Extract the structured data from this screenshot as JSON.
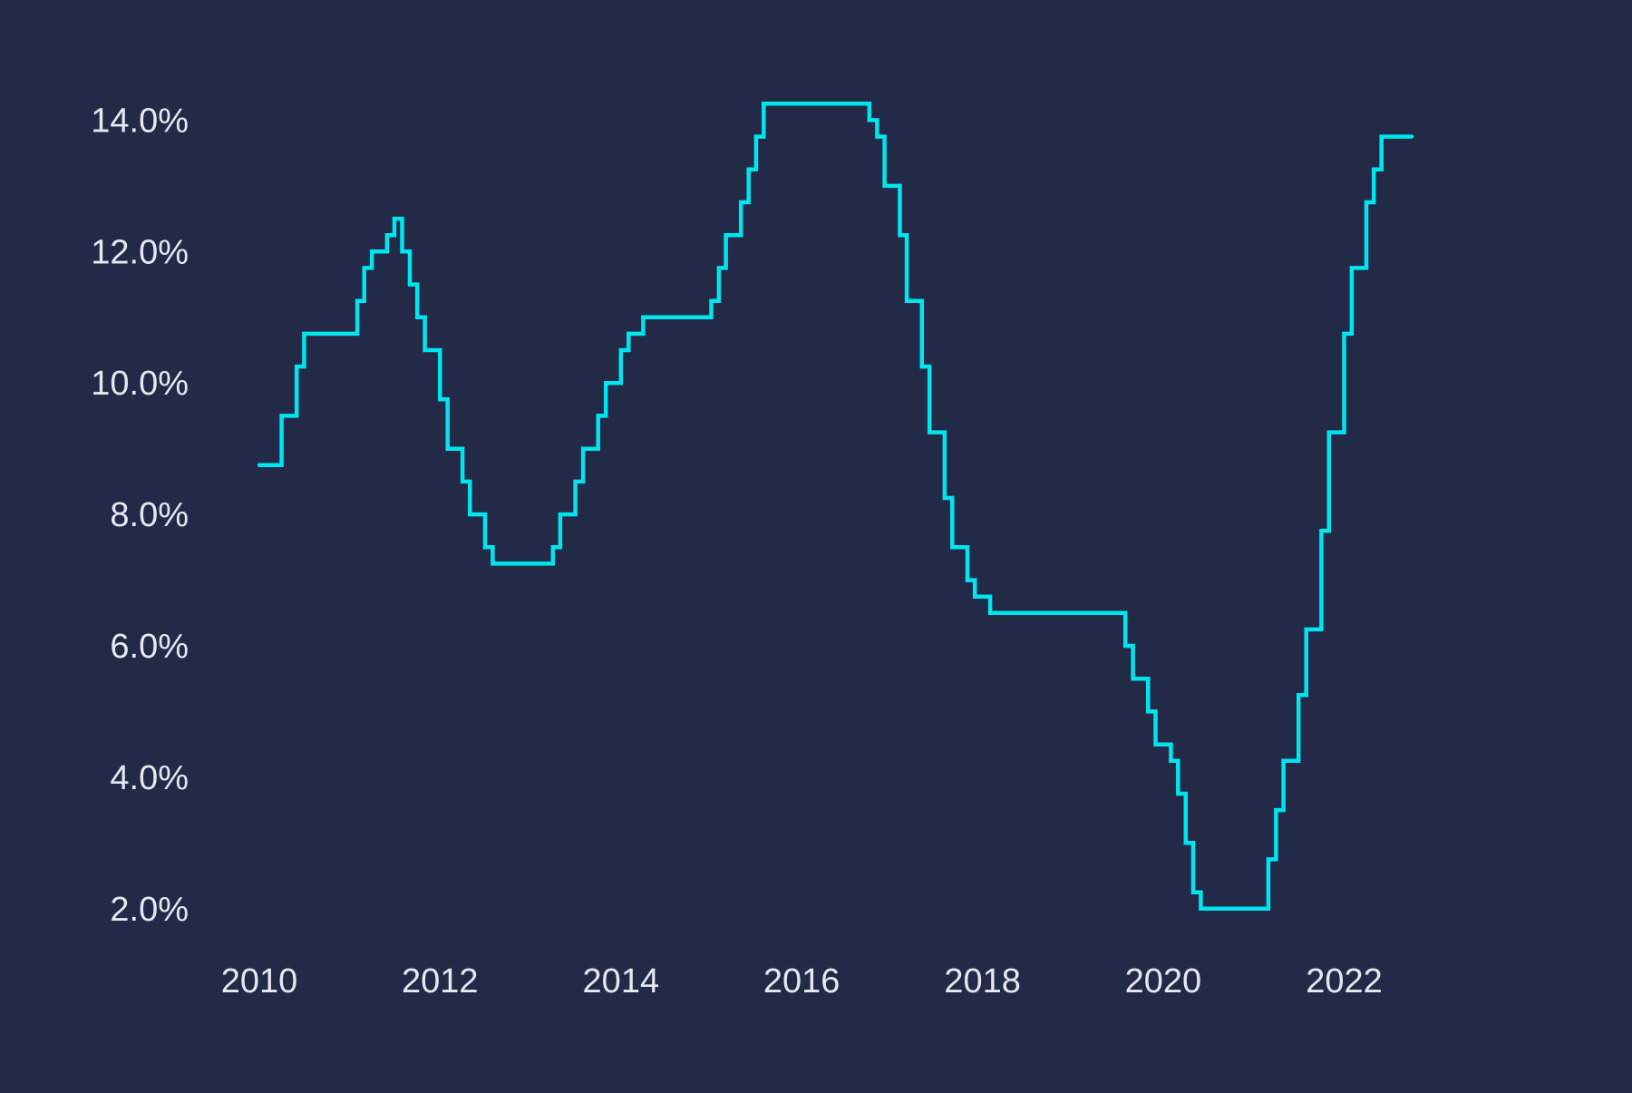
{
  "colors": {
    "background": "#222a48",
    "line": "#00e5ee",
    "text": "#e6e8f0"
  },
  "chart_data": {
    "type": "line",
    "step": "post",
    "title": "",
    "xlabel": "",
    "ylabel": "",
    "xlim": [
      "2010-01-01",
      "2022-10-01"
    ],
    "ylim": [
      1.5,
      15.0
    ],
    "grid": false,
    "legend": "none",
    "x_ticks": [
      "2010",
      "2012",
      "2014",
      "2016",
      "2018",
      "2020",
      "2022"
    ],
    "y_ticks": [
      "2.0%",
      "4.0%",
      "6.0%",
      "8.0%",
      "10.0%",
      "12.0%",
      "14.0%"
    ],
    "series": [
      {
        "x": [
          "2010-01-01",
          "2010-04-01",
          "2010-06-01",
          "2010-07-01",
          "2011-02-01",
          "2011-03-01",
          "2011-04-01",
          "2011-06-01",
          "2011-07-01",
          "2011-08-01",
          "2011-09-01",
          "2011-10-01",
          "2011-11-01",
          "2012-01-01",
          "2012-02-01",
          "2012-04-01",
          "2012-05-01",
          "2012-07-01",
          "2012-08-01",
          "2012-10-01",
          "2012-11-01",
          "2013-04-01",
          "2013-05-01",
          "2013-07-01",
          "2013-08-01",
          "2013-10-01",
          "2013-11-01",
          "2014-01-01",
          "2014-02-01",
          "2014-04-01",
          "2014-05-01",
          "2014-06-01",
          "2015-01-01",
          "2015-02-01",
          "2015-03-01",
          "2015-05-01",
          "2015-06-01",
          "2015-07-01",
          "2015-08-01",
          "2016-10-01",
          "2016-11-01",
          "2016-12-01",
          "2017-02-01",
          "2017-03-01",
          "2017-05-01",
          "2017-06-01",
          "2017-08-01",
          "2017-09-01",
          "2017-11-01",
          "2017-12-01",
          "2018-02-01",
          "2018-03-01",
          "2018-05-01",
          "2019-08-01",
          "2019-09-01",
          "2019-11-01",
          "2019-12-01",
          "2020-02-01",
          "2020-03-01",
          "2020-04-01",
          "2020-05-01",
          "2020-06-01",
          "2020-08-01",
          "2020-09-01",
          "2021-03-01",
          "2021-04-01",
          "2021-05-01",
          "2021-07-01",
          "2021-08-01",
          "2021-10-01",
          "2021-11-01",
          "2022-01-01",
          "2022-02-01",
          "2022-04-01",
          "2022-05-01",
          "2022-06-01",
          "2022-08-01",
          "2022-09-01",
          "2022-10-01"
        ],
        "y": [
          8.75,
          9.5,
          10.25,
          10.75,
          11.25,
          11.75,
          12.0,
          12.25,
          12.5,
          12.0,
          11.5,
          11.0,
          10.5,
          9.75,
          9.0,
          8.5,
          8.0,
          7.5,
          7.25,
          7.25,
          7.25,
          7.5,
          8.0,
          8.5,
          9.0,
          9.5,
          10.0,
          10.5,
          10.75,
          11.0,
          11.0,
          11.0,
          11.25,
          11.75,
          12.25,
          12.75,
          13.25,
          13.75,
          14.25,
          14.0,
          13.75,
          13.0,
          12.25,
          11.25,
          10.25,
          9.25,
          8.25,
          7.5,
          7.0,
          6.75,
          6.5,
          6.5,
          6.5,
          6.0,
          5.5,
          5.0,
          4.5,
          4.25,
          3.75,
          3.0,
          2.25,
          2.0,
          2.0,
          2.0,
          2.75,
          3.5,
          4.25,
          5.25,
          6.25,
          7.75,
          9.25,
          10.75,
          11.75,
          12.75,
          13.25,
          13.75,
          13.75,
          13.75,
          13.75
        ]
      }
    ]
  }
}
